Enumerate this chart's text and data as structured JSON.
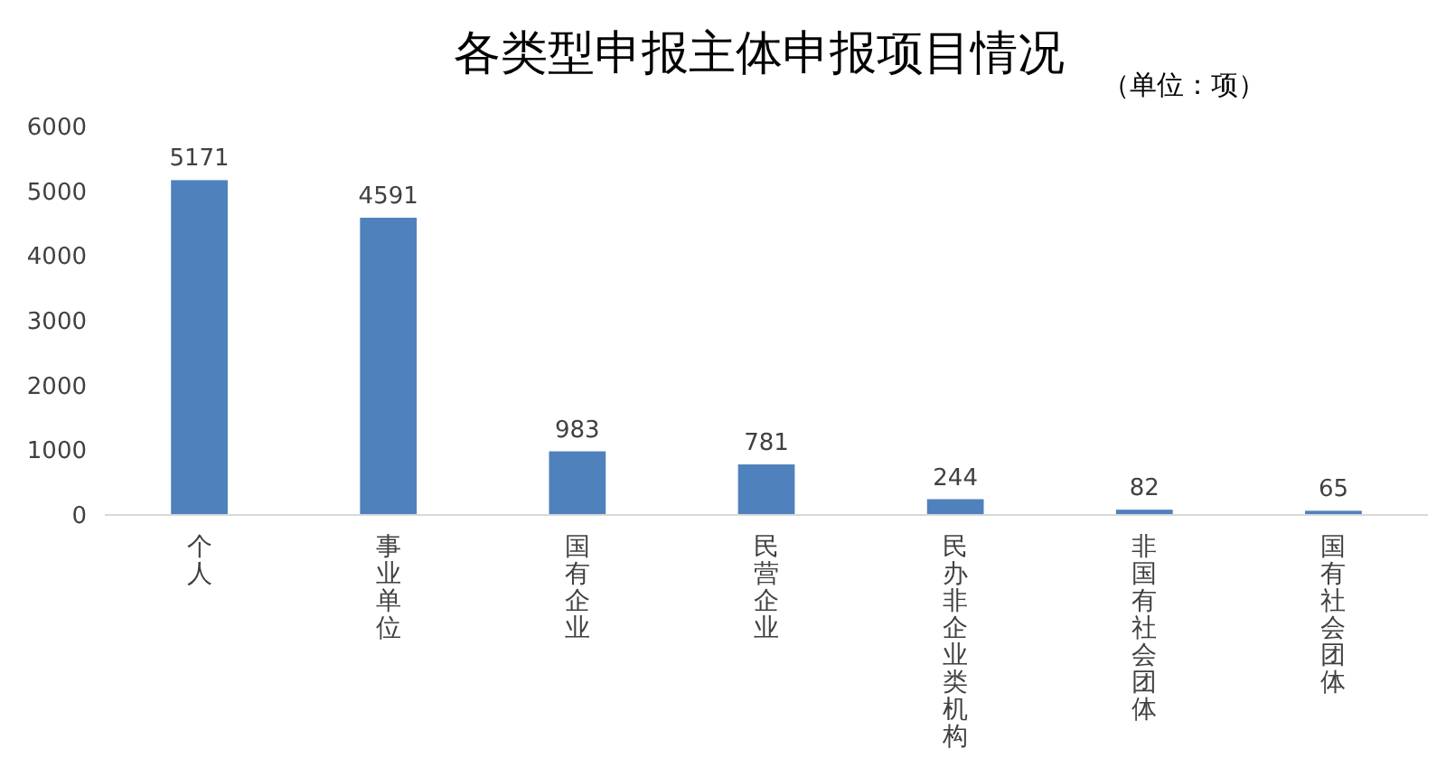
{
  "chart_data": {
    "type": "bar",
    "title": "各类型申报主体申报项目情况",
    "subtitle": "（单位：项）",
    "categories": [
      "个人",
      "事业单位",
      "国有企业",
      "民营企业",
      "民办非企业类机构",
      "非国有社会团体",
      "国有社会团体"
    ],
    "values": [
      5171,
      4591,
      983,
      781,
      244,
      82,
      65
    ],
    "color": "#4f81bd",
    "ylim": [
      0,
      6000
    ],
    "yticks": [
      0,
      1000,
      2000,
      3000,
      4000,
      5000,
      6000
    ],
    "data_labels": true
  }
}
